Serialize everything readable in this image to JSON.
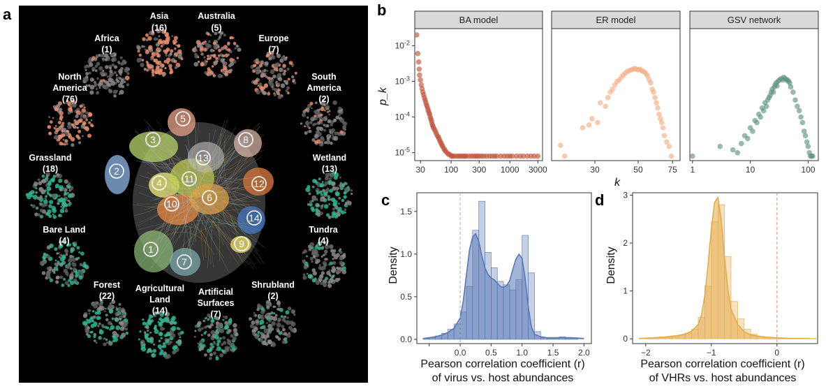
{
  "panel_letters": {
    "a": "a",
    "b": "b",
    "c": "c",
    "d": "d"
  },
  "colors": {
    "continent": "#e88c6f",
    "habitat": "#2fb592",
    "ba": "#c0543c",
    "er": "#f2ad88",
    "gsv": "#5f9482",
    "hist_c": "#5a77b5",
    "hist_d": "#e4ab4a"
  },
  "panel_a": {
    "continents": [
      {
        "name": "Africa",
        "count": "(1)"
      },
      {
        "name": "Asia",
        "count": "(16)"
      },
      {
        "name": "Australia",
        "count": "(5)"
      },
      {
        "name": "Europe",
        "count": "(7)"
      },
      {
        "name_lines": [
          "South",
          "America"
        ],
        "count": "(2)"
      },
      {
        "name_lines": [
          "North",
          "America"
        ],
        "count": "(76)"
      }
    ],
    "habitats": [
      {
        "name": "Grassland",
        "count": "(18)"
      },
      {
        "name": "Wetland",
        "count": "(13)"
      },
      {
        "name": "Bare Land",
        "count": "(4)"
      },
      {
        "name": "Tundra",
        "count": "(4)"
      },
      {
        "name": "Forest",
        "count": "(22)"
      },
      {
        "name_lines": [
          "Agricultural",
          "Land"
        ],
        "count": "(14)"
      },
      {
        "name_lines": [
          "Artificial",
          "Surfaces"
        ],
        "count": "(7)"
      },
      {
        "name": "Shrubland",
        "count": "(2)"
      }
    ],
    "clusters": [
      "1",
      "2",
      "3",
      "4",
      "5",
      "6",
      "7",
      "8",
      "9",
      "10",
      "11",
      "12",
      "13",
      "14"
    ]
  },
  "chart_data": [
    {
      "type": "scatter",
      "panel": "b",
      "facets": [
        "BA model",
        "ER model",
        "GSV network"
      ],
      "xlabel": "k",
      "ylabel": "p_k",
      "y_scale": "log",
      "x_scale": "log",
      "ylim": [
        6e-06,
        0.03
      ],
      "y_ticks": [
        {
          "v": 1e-05,
          "base": "10",
          "exp": "-5"
        },
        {
          "v": 0.0001,
          "base": "10",
          "exp": "-4"
        },
        {
          "v": 0.001,
          "base": "10",
          "exp": "-3"
        },
        {
          "v": 0.01,
          "base": "10",
          "exp": "-2"
        }
      ],
      "series": [
        {
          "facet": "BA model",
          "xlim": [
            24,
            3600
          ],
          "x_ticks": [
            {
              "v": 30,
              "label": "30"
            },
            {
              "v": 100,
              "label": "100"
            },
            {
              "v": 300,
              "label": "300"
            },
            {
              "v": 1000,
              "label": "1000"
            },
            {
              "v": 3000,
              "label": "3000"
            }
          ],
          "x": [
            26,
            27,
            28,
            28.5,
            29,
            30,
            31,
            32,
            33,
            34,
            35,
            36,
            37,
            38,
            39,
            40,
            41,
            42,
            43,
            44,
            45,
            46,
            47,
            48,
            49,
            50,
            52,
            54,
            56,
            58,
            60,
            62,
            64,
            66,
            68,
            70,
            72,
            75,
            78,
            80,
            85,
            90,
            95,
            100,
            105,
            110,
            120,
            130,
            140,
            150,
            160,
            170,
            180,
            200,
            220,
            240,
            260,
            280,
            300,
            330,
            360,
            400,
            450,
            500,
            550,
            600,
            700,
            800,
            900,
            1000,
            1100,
            1300,
            1500,
            1700,
            2000,
            2300,
            2600,
            3000
          ],
          "y": [
            0.02,
            0.006,
            0.0035,
            0.0022,
            0.0015,
            0.0011,
            0.0008,
            0.00062,
            0.0005,
            0.00042,
            0.00035,
            0.0003,
            0.00026,
            0.00022,
            0.0002,
            0.00017,
            0.00015,
            0.00013,
            0.00012,
            0.0001,
            9e-05,
            8e-05,
            7e-05,
            6e-05,
            5.5e-05,
            5e-05,
            4.5e-05,
            4e-05,
            3.5e-05,
            3e-05,
            2.8e-05,
            2.5e-05,
            2.2e-05,
            2e-05,
            1.8e-05,
            1.6e-05,
            1.5e-05,
            1.3e-05,
            1.2e-05,
            1.1e-05,
            1e-05,
            9e-06,
            9e-06,
            8e-06,
            8e-06,
            8e-06,
            8e-06,
            8e-06,
            8e-06,
            8e-06,
            8e-06,
            8e-06,
            8e-06,
            8e-06,
            8e-06,
            8e-06,
            8e-06,
            8e-06,
            8e-06,
            8e-06,
            8e-06,
            8e-06,
            8e-06,
            8e-06,
            8e-06,
            8e-06,
            8e-06,
            8e-06,
            8e-06,
            8e-06,
            8e-06,
            8e-06,
            8e-06,
            8e-06,
            8e-06,
            8e-06,
            8e-06,
            8e-06
          ]
        },
        {
          "facet": "ER model",
          "xlim": [
            18,
            82
          ],
          "x_ticks": [
            {
              "v": 30,
              "label": "30"
            },
            {
              "v": 50,
              "label": "50"
            },
            {
              "v": 75,
              "label": "75"
            }
          ],
          "x": [
            20,
            21,
            26,
            28,
            29,
            31,
            32,
            34,
            35,
            36,
            37,
            38,
            39,
            40,
            41,
            42,
            43,
            44,
            45,
            46,
            47,
            48,
            49,
            50,
            51,
            52,
            53,
            54,
            55,
            56,
            57,
            58,
            59,
            60,
            61,
            62,
            63,
            64,
            65,
            66,
            67,
            68,
            70,
            72,
            74
          ],
          "y": [
            1.6e-05,
            8e-06,
            5e-05,
            6e-05,
            9e-05,
            7e-05,
            0.00025,
            0.0002,
            0.00035,
            0.0005,
            0.0006,
            0.0008,
            0.001,
            0.0011,
            0.0013,
            0.0015,
            0.0017,
            0.0019,
            0.002,
            0.0021,
            0.0022,
            0.0023,
            0.0022,
            0.0021,
            0.0022,
            0.002,
            0.0019,
            0.0018,
            0.0016,
            0.0014,
            0.0011,
            0.0009,
            0.0006,
            0.0005,
            0.00035,
            0.00025,
            0.00018,
            0.00012,
            9e-05,
            7e-05,
            5e-05,
            3e-05,
            2e-05,
            1.5e-05,
            8e-06
          ]
        },
        {
          "facet": "GSV network",
          "xlim": [
            0.9,
            150
          ],
          "x_ticks": [
            {
              "v": 1,
              "label": "1"
            },
            {
              "v": 10,
              "label": "10"
            },
            {
              "v": 100,
              "label": "100"
            }
          ],
          "x": [
            1,
            3,
            5,
            6,
            7,
            8,
            9,
            10,
            11,
            12,
            13,
            14,
            15,
            16,
            17,
            18,
            19,
            20,
            21,
            22,
            23,
            24,
            25,
            26,
            27,
            28,
            29,
            30,
            32,
            34,
            36,
            38,
            40,
            42,
            44,
            46,
            48,
            50,
            55,
            60,
            65,
            70,
            75,
            80,
            85,
            90,
            95,
            100,
            105,
            110,
            115,
            120
          ],
          "y": [
            8e-06,
            1.5e-05,
            1.2e-05,
            1e-05,
            1.8e-05,
            3e-05,
            2.5e-05,
            5e-05,
            4e-05,
            8e-05,
            7e-05,
            0.00012,
            0.0001,
            0.00018,
            0.00015,
            0.00025,
            0.0002,
            0.0003,
            0.00035,
            0.0004,
            0.0005,
            0.0006,
            0.0005,
            0.0007,
            0.0008,
            0.0009,
            0.00075,
            0.001,
            0.0011,
            0.0012,
            0.0011,
            0.0013,
            0.0012,
            0.0011,
            0.0011,
            0.001,
            0.0009,
            0.0007,
            0.0005,
            0.0003,
            0.0002,
            0.00015,
            0.0001,
            7e-05,
            4e-05,
            3e-05,
            2e-05,
            1.5e-05,
            1e-05,
            8e-06,
            8e-06,
            8e-06
          ]
        }
      ]
    },
    {
      "type": "histogram",
      "panel": "c",
      "xlabel_lines": [
        "Pearson correlation coefficient (r)",
        "of virus vs. host abundances"
      ],
      "ylabel": "Density",
      "xlim": [
        -0.7,
        2.12
      ],
      "ylim": [
        -0.05,
        1.72
      ],
      "x_ticks": [
        -0.5,
        0.0,
        0.5,
        1.0,
        1.5,
        2.0
      ],
      "x_tick_labels": [
        "",
        "0.0",
        "0.5",
        "1.0",
        "1.5",
        "2.0"
      ],
      "y_ticks": [
        0.0,
        0.5,
        1.0,
        1.5
      ],
      "y_tick_labels": [
        "0.0",
        "0.5",
        "1.0",
        "1.5"
      ],
      "ref_line": 0,
      "bin_start": -0.6,
      "bin_width": 0.1,
      "density": [
        0.01,
        0.02,
        0.04,
        0.07,
        0.12,
        0.18,
        0.32,
        0.62,
        1.28,
        1.62,
        1.02,
        0.84,
        0.68,
        0.64,
        0.58,
        0.7,
        1.22,
        0.78,
        0.09,
        0.02,
        0.01,
        0.01,
        0.03,
        0.01,
        0.01
      ],
      "kde_x": [
        -0.6,
        -0.5,
        -0.4,
        -0.3,
        -0.2,
        -0.1,
        0,
        0.05,
        0.1,
        0.15,
        0.2,
        0.25,
        0.3,
        0.35,
        0.4,
        0.45,
        0.5,
        0.55,
        0.6,
        0.65,
        0.7,
        0.75,
        0.8,
        0.85,
        0.9,
        0.95,
        1.0,
        1.05,
        1.1,
        1.15,
        1.2,
        1.3,
        1.4,
        1.6,
        1.8,
        2.0
      ],
      "kde_y": [
        0.01,
        0.02,
        0.03,
        0.05,
        0.08,
        0.13,
        0.25,
        0.45,
        0.75,
        1.05,
        1.2,
        1.24,
        1.15,
        0.98,
        0.84,
        0.76,
        0.72,
        0.7,
        0.66,
        0.62,
        0.61,
        0.63,
        0.69,
        0.82,
        0.94,
        1.0,
        0.95,
        0.72,
        0.38,
        0.15,
        0.06,
        0.03,
        0.02,
        0.02,
        0.02,
        0.01
      ]
    },
    {
      "type": "histogram",
      "panel": "d",
      "xlabel_lines": [
        "Pearson correlation coefficient (r)",
        "of VHRs vs. host abundances"
      ],
      "ylabel": "Density",
      "xlim": [
        -2.2,
        0.62
      ],
      "ylim": [
        -0.1,
        3.05
      ],
      "x_ticks": [
        -2,
        -1,
        0
      ],
      "x_tick_labels": [
        "−2",
        "−1",
        "0"
      ],
      "y_ticks": [
        0,
        1,
        2,
        3
      ],
      "y_tick_labels": [
        "0",
        "1",
        "2",
        "3"
      ],
      "ref_line": 0,
      "bin_start": -2.1,
      "bin_width": 0.1,
      "density": [
        0.01,
        0.01,
        0.02,
        0.02,
        0.03,
        0.05,
        0.08,
        0.12,
        0.2,
        0.45,
        1.1,
        2.45,
        2.8,
        1.72,
        0.78,
        0.42,
        0.2,
        0.1,
        0.05,
        0.03,
        0.02,
        0.01,
        0.01,
        0.01,
        0.01,
        0.01,
        0.01
      ],
      "kde_x": [
        -2.1,
        -1.9,
        -1.7,
        -1.5,
        -1.4,
        -1.3,
        -1.2,
        -1.15,
        -1.1,
        -1.05,
        -1.0,
        -0.95,
        -0.9,
        -0.85,
        -0.8,
        -0.75,
        -0.7,
        -0.6,
        -0.5,
        -0.4,
        -0.2,
        0,
        0.2,
        0.5
      ],
      "kde_y": [
        0.01,
        0.02,
        0.04,
        0.07,
        0.1,
        0.16,
        0.3,
        0.5,
        0.9,
        1.55,
        2.3,
        2.85,
        2.95,
        2.5,
        1.7,
        1.05,
        0.62,
        0.3,
        0.15,
        0.08,
        0.04,
        0.02,
        0.01,
        0.01
      ]
    }
  ]
}
